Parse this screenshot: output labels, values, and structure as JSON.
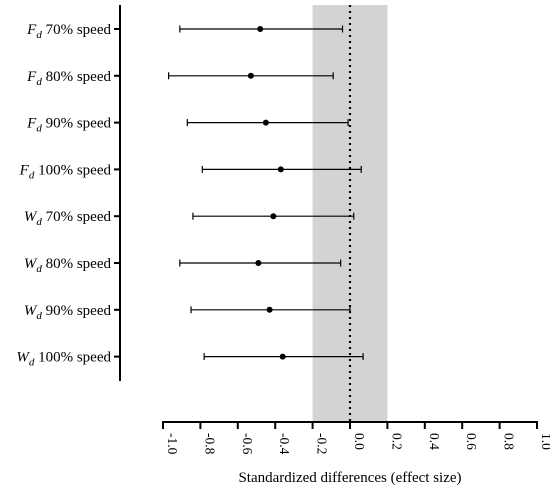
{
  "chart_data": {
    "type": "forest",
    "xlabel": "Standardized differences (effect size)",
    "xlim": [
      -1.0,
      1.0
    ],
    "xticks": [
      "-1.0",
      "-0.8",
      "-0.6",
      "-0.4",
      "-0.2",
      "0.0",
      "0.2",
      "0.4",
      "0.6",
      "0.8",
      "1.0"
    ],
    "reference_line": 0.0,
    "trivial_band": [
      -0.2,
      0.2
    ],
    "band_color": "#d3d3d3",
    "rows": [
      {
        "symbol": "F",
        "sub": "d",
        "suffix": " 70% speed",
        "estimate": -0.48,
        "lower": -0.91,
        "upper": -0.04
      },
      {
        "symbol": "F",
        "sub": "d",
        "suffix": " 80% speed",
        "estimate": -0.53,
        "lower": -0.97,
        "upper": -0.09
      },
      {
        "symbol": "F",
        "sub": "d",
        "suffix": " 90% speed",
        "estimate": -0.45,
        "lower": -0.87,
        "upper": -0.01
      },
      {
        "symbol": "F",
        "sub": "d",
        "suffix": " 100% speed",
        "estimate": -0.37,
        "lower": -0.79,
        "upper": 0.06
      },
      {
        "symbol": "W",
        "sub": "d",
        "suffix": " 70% speed",
        "estimate": -0.41,
        "lower": -0.84,
        "upper": 0.02
      },
      {
        "symbol": "W",
        "sub": "d",
        "suffix": " 80% speed",
        "estimate": -0.49,
        "lower": -0.91,
        "upper": -0.05
      },
      {
        "symbol": "W",
        "sub": "d",
        "suffix": " 90% speed",
        "estimate": -0.43,
        "lower": -0.85,
        "upper": 0.0
      },
      {
        "symbol": "W",
        "sub": "d",
        "suffix": " 100% speed",
        "estimate": -0.36,
        "lower": -0.78,
        "upper": 0.07
      }
    ]
  }
}
